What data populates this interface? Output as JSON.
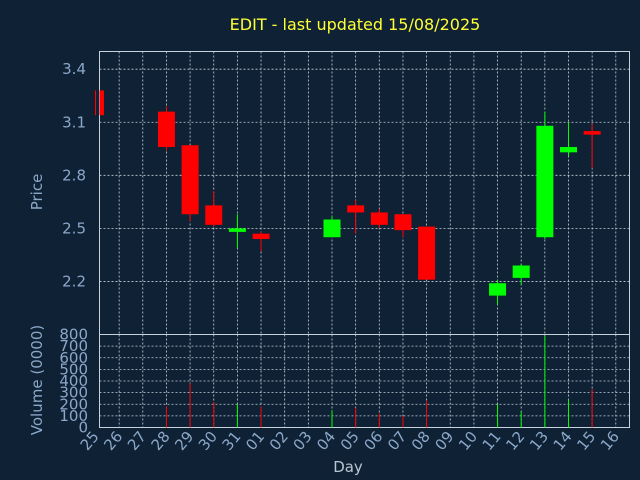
{
  "chart_data": {
    "type": "candlestick",
    "title": "EDIT - last updated 15/08/2025",
    "xlabel": "Day",
    "ylabel_price": "Price",
    "ylabel_volume": "Volume (0000)",
    "x_ticks": [
      "25",
      "26",
      "27",
      "28",
      "29",
      "30",
      "31",
      "01",
      "02",
      "03",
      "04",
      "05",
      "06",
      "07",
      "08",
      "09",
      "10",
      "11",
      "12",
      "13",
      "14",
      "15",
      "16"
    ],
    "price_ticks": [
      "2.2",
      "2.5",
      "2.8",
      "3.1",
      "3.4"
    ],
    "price_tick_values": [
      2.2,
      2.5,
      2.8,
      3.1,
      3.4
    ],
    "price_range": [
      1.9,
      3.5
    ],
    "volume_ticks": [
      "0",
      "100",
      "200",
      "300",
      "400",
      "500",
      "600",
      "700",
      "800"
    ],
    "volume_tick_values": [
      0,
      100,
      200,
      300,
      400,
      500,
      600,
      700,
      800
    ],
    "volume_range": [
      0,
      800
    ],
    "grid": true,
    "colors": {
      "up": "#00ff00",
      "down": "#ff0000",
      "background": "#0f2135",
      "title": "#ffff33"
    },
    "candles": [
      {
        "day": "25",
        "open": 3.28,
        "high": 3.28,
        "low": 3.14,
        "close": 3.14,
        "volume": 0
      },
      {
        "day": "28",
        "open": 3.16,
        "high": 3.19,
        "low": 2.94,
        "close": 2.96,
        "volume": 180
      },
      {
        "day": "29",
        "open": 2.97,
        "high": 2.97,
        "low": 2.54,
        "close": 2.58,
        "volume": 380
      },
      {
        "day": "30",
        "open": 2.63,
        "high": 2.71,
        "low": 2.51,
        "close": 2.52,
        "volume": 220
      },
      {
        "day": "31",
        "open": 2.48,
        "high": 2.58,
        "low": 2.39,
        "close": 2.5,
        "volume": 200
      },
      {
        "day": "01",
        "open": 2.47,
        "high": 2.48,
        "low": 2.37,
        "close": 2.44,
        "volume": 180
      },
      {
        "day": "04",
        "open": 2.45,
        "high": 2.57,
        "low": 2.45,
        "close": 2.55,
        "volume": 150
      },
      {
        "day": "05",
        "open": 2.63,
        "high": 2.66,
        "low": 2.47,
        "close": 2.59,
        "volume": 170
      },
      {
        "day": "06",
        "open": 2.59,
        "high": 2.61,
        "low": 2.5,
        "close": 2.52,
        "volume": 120
      },
      {
        "day": "07",
        "open": 2.58,
        "high": 2.58,
        "low": 2.45,
        "close": 2.49,
        "volume": 100
      },
      {
        "day": "08",
        "open": 2.51,
        "high": 2.51,
        "low": 2.21,
        "close": 2.21,
        "volume": 230
      },
      {
        "day": "11",
        "open": 2.12,
        "high": 2.21,
        "low": 2.07,
        "close": 2.19,
        "volume": 200
      },
      {
        "day": "12",
        "open": 2.22,
        "high": 2.3,
        "low": 2.18,
        "close": 2.29,
        "volume": 140
      },
      {
        "day": "13",
        "open": 2.45,
        "high": 3.16,
        "low": 2.44,
        "close": 3.08,
        "volume": 790
      },
      {
        "day": "14",
        "open": 2.93,
        "high": 3.1,
        "low": 2.91,
        "close": 2.96,
        "volume": 240
      },
      {
        "day": "15",
        "open": 3.05,
        "high": 3.09,
        "low": 2.84,
        "close": 3.03,
        "volume": 330
      }
    ]
  }
}
